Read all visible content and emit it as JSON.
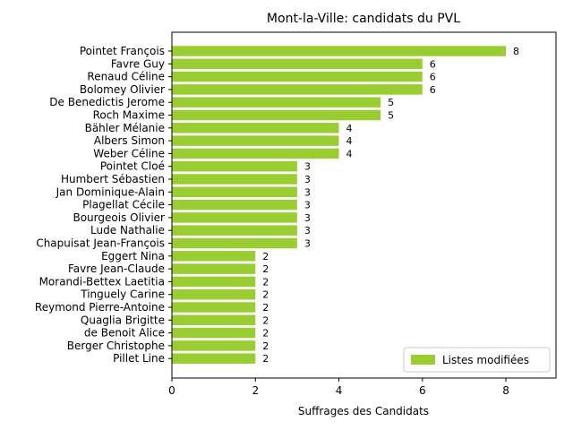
{
  "chart_data": {
    "type": "bar",
    "orientation": "horizontal",
    "title": "Mont-la-Ville: candidats du PVL",
    "xlabel": "Suffrages des Candidats",
    "ylabel": "",
    "xlim": [
      0,
      9.2
    ],
    "xticks": [
      0,
      2,
      4,
      6,
      8
    ],
    "grid": false,
    "legend_position": "lower-right",
    "bar_color": "#9acd32",
    "categories": [
      "Pointet François",
      "Favre Guy",
      "Renaud Céline",
      "Bolomey Olivier",
      "De Benedictis Jerome",
      "Roch Maxime",
      "Bähler Mélanie",
      "Albers Simon",
      "Weber Céline",
      "Pointet Cloé",
      "Humbert Sébastien",
      "Jan Dominique-Alain",
      "Plagellat Cécile",
      "Bourgeois Olivier",
      "Lude Nathalie",
      "Chapuisat Jean-François",
      "Eggert Nina",
      "Favre Jean-Claude",
      "Morandi-Bettex Laetitia",
      "Tinguely Carine",
      "Reymond Pierre-Antoine",
      "Quaglia Brigitte",
      "de Benoit Alice",
      "Berger Christophe",
      "Pillet Line"
    ],
    "series": [
      {
        "name": "Listes modifiées",
        "values": [
          8,
          6,
          6,
          6,
          5,
          5,
          4,
          4,
          4,
          3,
          3,
          3,
          3,
          3,
          3,
          3,
          2,
          2,
          2,
          2,
          2,
          2,
          2,
          2,
          2
        ]
      }
    ]
  }
}
